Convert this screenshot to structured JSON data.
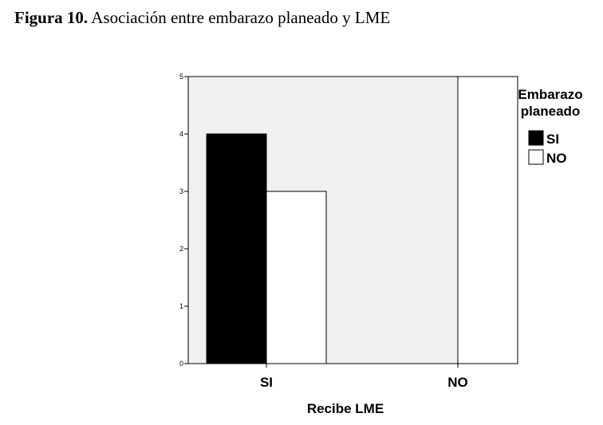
{
  "caption": {
    "label": "Figura 10.",
    "text": "Asociación entre embarazo planeado y LME"
  },
  "chart_data": {
    "type": "bar",
    "title": "",
    "xlabel": "Recibe LME",
    "ylabel": "",
    "categories": [
      "SI",
      "NO"
    ],
    "series": [
      {
        "name": "SI",
        "values": [
          4,
          0
        ],
        "color": "#000000"
      },
      {
        "name": "NO",
        "values": [
          3,
          5
        ],
        "color": "#ffffff"
      }
    ],
    "ylim": [
      0,
      5
    ],
    "yticks": [
      0,
      1,
      2,
      3,
      4,
      5
    ],
    "legend": {
      "title_lines": [
        "Embarazo",
        "planeado"
      ],
      "position": "right"
    },
    "plot_background": "#f0f0f0",
    "grid": false
  }
}
